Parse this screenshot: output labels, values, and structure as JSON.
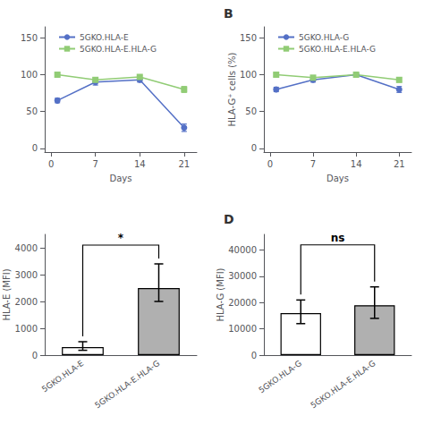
{
  "chart_data": [
    {
      "type": "line",
      "x": [
        1,
        7,
        14,
        21
      ],
      "xlabel": "Days",
      "xlim": [
        -1,
        23
      ],
      "xticks": [
        0,
        7,
        14,
        21
      ],
      "ylim": [
        -5,
        165
      ],
      "yticks": [
        0,
        50,
        100,
        150
      ],
      "grid": false,
      "legend": "upper left",
      "series": [
        {
          "name": "5GKO.HLA-E",
          "marker": "circle",
          "values": [
            65,
            90,
            93,
            28
          ],
          "errors": [
            3,
            4,
            3,
            5
          ]
        },
        {
          "name": "5GKO.HLA-E.HLA-G",
          "marker": "square",
          "values": [
            100,
            93,
            97,
            80
          ],
          "errors": [
            2,
            3,
            2,
            4
          ]
        }
      ]
    },
    {
      "type": "line",
      "panel_label": "B",
      "x": [
        1,
        7,
        14,
        21
      ],
      "xlabel": "Days",
      "ylabel": "HLA-G⁺ cells (%)",
      "xlim": [
        -1,
        23
      ],
      "xticks": [
        0,
        7,
        14,
        21
      ],
      "ylim": [
        -5,
        165
      ],
      "yticks": [
        0,
        50,
        100,
        150
      ],
      "grid": false,
      "legend": "upper left",
      "series": [
        {
          "name": "5GKO.HLA-G",
          "marker": "circle",
          "values": [
            80,
            93,
            100,
            80
          ],
          "errors": [
            3,
            3,
            2,
            4
          ]
        },
        {
          "name": "5GKO.HLA-E.HLA-G",
          "marker": "square",
          "values": [
            100,
            96,
            100,
            93
          ],
          "errors": [
            2,
            2,
            2,
            3
          ]
        }
      ]
    },
    {
      "type": "bar",
      "categories": [
        "5GKO.HLA-E",
        "5GKO.HLA-E.HLA-G"
      ],
      "values": [
        300,
        2500
      ],
      "errors_down": [
        120,
        500
      ],
      "errors_up": [
        200,
        900
      ],
      "colors": [
        "#ffffff",
        "#b0b0b0"
      ],
      "ylabel": "HLA-E (MFI)",
      "ylim": [
        0,
        4500
      ],
      "yticks": [
        0,
        1000,
        2000,
        3000,
        4000
      ],
      "grid": false,
      "annotations": [
        {
          "text": "*",
          "y": 4100,
          "between": [
            "5GKO.HLA-E",
            "5GKO.HLA-E.HLA-G"
          ]
        }
      ]
    },
    {
      "type": "bar",
      "panel_label": "D",
      "categories": [
        "5GKO.HLA-G",
        "5GKO.HLA-E.HLA-G"
      ],
      "values": [
        16000,
        19000
      ],
      "errors_down": [
        4000,
        5000
      ],
      "errors_up": [
        5000,
        7000
      ],
      "colors": [
        "#ffffff",
        "#b0b0b0"
      ],
      "ylabel": "HLA-G (MFI)",
      "ylim": [
        0,
        46000
      ],
      "yticks": [
        0,
        10000,
        20000,
        30000,
        40000
      ],
      "grid": false,
      "annotations": [
        {
          "text": "ns",
          "y": 42000,
          "between": [
            "5GKO.HLA-G",
            "5GKO.HLA-E.HLA-G"
          ]
        }
      ]
    }
  ]
}
